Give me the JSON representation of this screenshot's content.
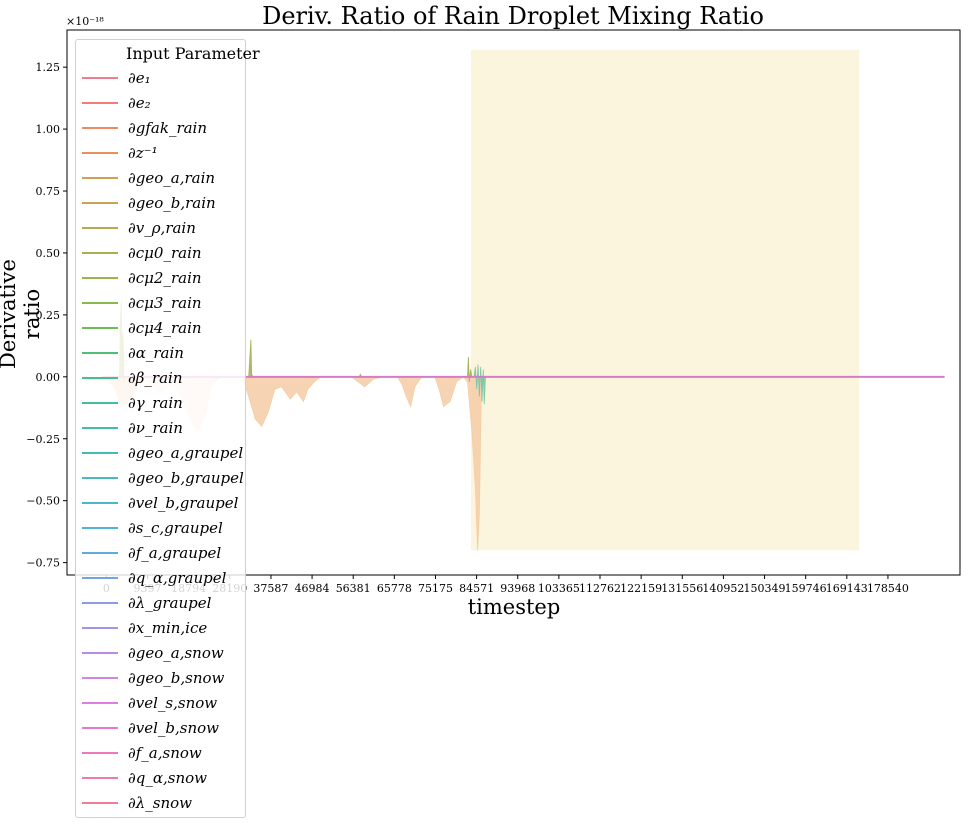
{
  "chart_data": {
    "type": "line",
    "title": "Deriv. Ratio of Rain Droplet Mixing Ratio",
    "xlabel": "timestep",
    "ylabel": "Derivative ratio",
    "y_exponent": "×10⁻¹⁸",
    "xlim": [
      -9000,
      195000
    ],
    "ylim": [
      -0.8,
      1.4
    ],
    "yticks": [
      -0.75,
      -0.5,
      -0.25,
      0.0,
      0.25,
      0.5,
      0.75,
      1.0,
      1.25
    ],
    "ytick_labels": [
      "−0.75",
      "−0.50",
      "−0.25",
      "0.00",
      "0.25",
      "0.50",
      "0.75",
      "1.00",
      "1.25"
    ],
    "xticks": [
      0,
      9397,
      18794,
      28190,
      37587,
      46984,
      56381,
      65778,
      75175,
      84571,
      93968,
      103365,
      112762,
      122159,
      131556,
      140952,
      150349,
      159746,
      169143,
      178540
    ],
    "xtick_labels": [
      "0",
      "9397",
      "18794",
      "28190",
      "37587",
      "46984",
      "56381",
      "65778",
      "75175",
      "84571",
      "93968",
      "103365",
      "112762",
      "122159",
      "131556",
      "140952",
      "150349",
      "159746",
      "169143",
      "178540"
    ],
    "highlight_region": {
      "x": [
        83300,
        172000
      ],
      "y": [
        -0.7,
        1.32
      ],
      "color": "#faf5dc"
    },
    "grid": false,
    "legend": {
      "title": "Input Parameter",
      "placement": "upper-left"
    },
    "series": [
      {
        "name": "∂e₁",
        "color": "#f37b8f"
      },
      {
        "name": "∂e₂",
        "color": "#f47d7b"
      },
      {
        "name": "∂gfak_rain",
        "color": "#ef8a62"
      },
      {
        "name": "∂z⁻¹",
        "color": "#e99158"
      },
      {
        "name": "∂geo_a,rain",
        "color": "#cfa054"
      },
      {
        "name": "∂geo_b,rain",
        "color": "#c6a551"
      },
      {
        "name": "∂v_ρ,rain",
        "color": "#b8aa52"
      },
      {
        "name": "∂cμ0_rain",
        "color": "#a8b04f"
      },
      {
        "name": "∂cμ2_rain",
        "color": "#98b54c"
      },
      {
        "name": "∂cμ3_rain",
        "color": "#86ba4c"
      },
      {
        "name": "∂cμ4_rain",
        "color": "#6cbd55"
      },
      {
        "name": "∂α_rain",
        "color": "#4fbf76"
      },
      {
        "name": "∂β_rain",
        "color": "#47bf8c"
      },
      {
        "name": "∂γ_rain",
        "color": "#45be9b"
      },
      {
        "name": "∂ν_rain",
        "color": "#44bda6"
      },
      {
        "name": "∂geo_a,graupel",
        "color": "#45bcb3"
      },
      {
        "name": "∂geo_b,graupel",
        "color": "#48babf"
      },
      {
        "name": "∂vel_b,graupel",
        "color": "#4bb8c9"
      },
      {
        "name": "∂s_c,graupel",
        "color": "#52b4d4"
      },
      {
        "name": "∂f_a,graupel",
        "color": "#5eacde"
      },
      {
        "name": "∂q_α,graupel",
        "color": "#73a3e4"
      },
      {
        "name": "∂λ_graupel",
        "color": "#8c9ae9"
      },
      {
        "name": "∂x_min,ice",
        "color": "#a493ea"
      },
      {
        "name": "∂geo_a,snow",
        "color": "#b88ce8"
      },
      {
        "name": "∂geo_b,snow",
        "color": "#cc84e5"
      },
      {
        "name": "∂vel_s,snow",
        "color": "#e07de0"
      },
      {
        "name": "∂vel_b,snow",
        "color": "#ea79cf"
      },
      {
        "name": "∂f_a,snow",
        "color": "#ef78bd"
      },
      {
        "name": "∂q_α,snow",
        "color": "#f179ac"
      },
      {
        "name": "∂λ_snow",
        "color": "#f27a9a"
      }
    ],
    "areas": [
      {
        "name": "∂gfak_rain",
        "color": "#f5cda6",
        "points": [
          [
            0,
            0
          ],
          [
            2000,
            -0.05
          ],
          [
            3500,
            -0.12
          ],
          [
            5000,
            -0.1
          ],
          [
            7000,
            -0.04
          ],
          [
            9000,
            0
          ],
          [
            14000,
            0.0
          ],
          [
            16000,
            -0.02
          ],
          [
            18000,
            -0.08
          ],
          [
            19500,
            -0.18
          ],
          [
            21000,
            -0.22
          ],
          [
            22500,
            -0.15
          ],
          [
            24000,
            -0.03
          ],
          [
            26000,
            0
          ],
          [
            31000,
            0
          ],
          [
            32500,
            -0.08
          ],
          [
            34000,
            -0.17
          ],
          [
            35500,
            -0.2
          ],
          [
            37000,
            -0.14
          ],
          [
            38500,
            -0.05
          ],
          [
            40000,
            -0.04
          ],
          [
            42000,
            -0.09
          ],
          [
            43500,
            -0.06
          ],
          [
            45000,
            -0.1
          ],
          [
            46000,
            -0.05
          ],
          [
            47500,
            -0.02
          ],
          [
            49000,
            0
          ],
          [
            56000,
            0
          ],
          [
            57500,
            -0.02
          ],
          [
            59000,
            -0.04
          ],
          [
            61000,
            -0.01
          ],
          [
            63000,
            0
          ],
          [
            66500,
            0
          ],
          [
            67500,
            -0.03
          ],
          [
            68500,
            -0.08
          ],
          [
            69500,
            -0.12
          ],
          [
            70500,
            -0.04
          ],
          [
            72000,
            0
          ],
          [
            75000,
            0
          ],
          [
            76000,
            -0.05
          ],
          [
            77000,
            -0.12
          ],
          [
            78500,
            -0.1
          ],
          [
            80000,
            -0.02
          ],
          [
            81500,
            0
          ],
          [
            82500,
            -0.02
          ],
          [
            83500,
            -0.22
          ],
          [
            84300,
            -0.45
          ],
          [
            84800,
            -0.7
          ],
          [
            85200,
            -0.55
          ],
          [
            85600,
            -0.1
          ],
          [
            86200,
            0
          ]
        ]
      },
      {
        "name": "∂e₁",
        "color": "#fde6d8",
        "points": [
          [
            8000,
            0
          ],
          [
            10000,
            -0.03
          ],
          [
            12000,
            -0.06
          ],
          [
            13500,
            -0.05
          ],
          [
            15000,
            -0.03
          ],
          [
            16500,
            -0.06
          ],
          [
            17500,
            -0.1
          ],
          [
            18800,
            -0.16
          ],
          [
            19800,
            -0.2
          ],
          [
            21000,
            -0.22
          ],
          [
            22200,
            -0.16
          ],
          [
            23500,
            -0.06
          ],
          [
            25000,
            0
          ]
        ]
      },
      {
        "name": "∂cμ0_rain",
        "color": "#a8b04f",
        "points": [
          [
            3000,
            0
          ],
          [
            3200,
            0.22
          ],
          [
            3400,
            0.31
          ],
          [
            3600,
            0.05
          ],
          [
            3800,
            0.18
          ],
          [
            4000,
            -0.02
          ],
          [
            4200,
            0
          ],
          [
            32500,
            0
          ],
          [
            33000,
            0.15
          ],
          [
            33200,
            0.01
          ],
          [
            33500,
            0
          ],
          [
            57800,
            0
          ],
          [
            58000,
            0.01
          ],
          [
            58300,
            0
          ],
          [
            82500,
            0
          ],
          [
            82700,
            0.08
          ],
          [
            82900,
            -0.02
          ],
          [
            83200,
            0.03
          ],
          [
            83500,
            0
          ]
        ]
      },
      {
        "name": "∂α_rain",
        "color": "#7cc6a6",
        "points": [
          [
            84000,
            0
          ],
          [
            84300,
            0.04
          ],
          [
            84600,
            -0.05
          ],
          [
            84900,
            0.05
          ],
          [
            85200,
            -0.08
          ],
          [
            85500,
            0.04
          ],
          [
            85800,
            -0.1
          ],
          [
            86100,
            0.03
          ],
          [
            86300,
            -0.11
          ],
          [
            86600,
            0
          ]
        ]
      }
    ],
    "baseline": {
      "name": "∂λ_snow",
      "color": "#d77bc7",
      "x": [
        -1000,
        191500
      ],
      "y": [
        0,
        0
      ]
    }
  }
}
